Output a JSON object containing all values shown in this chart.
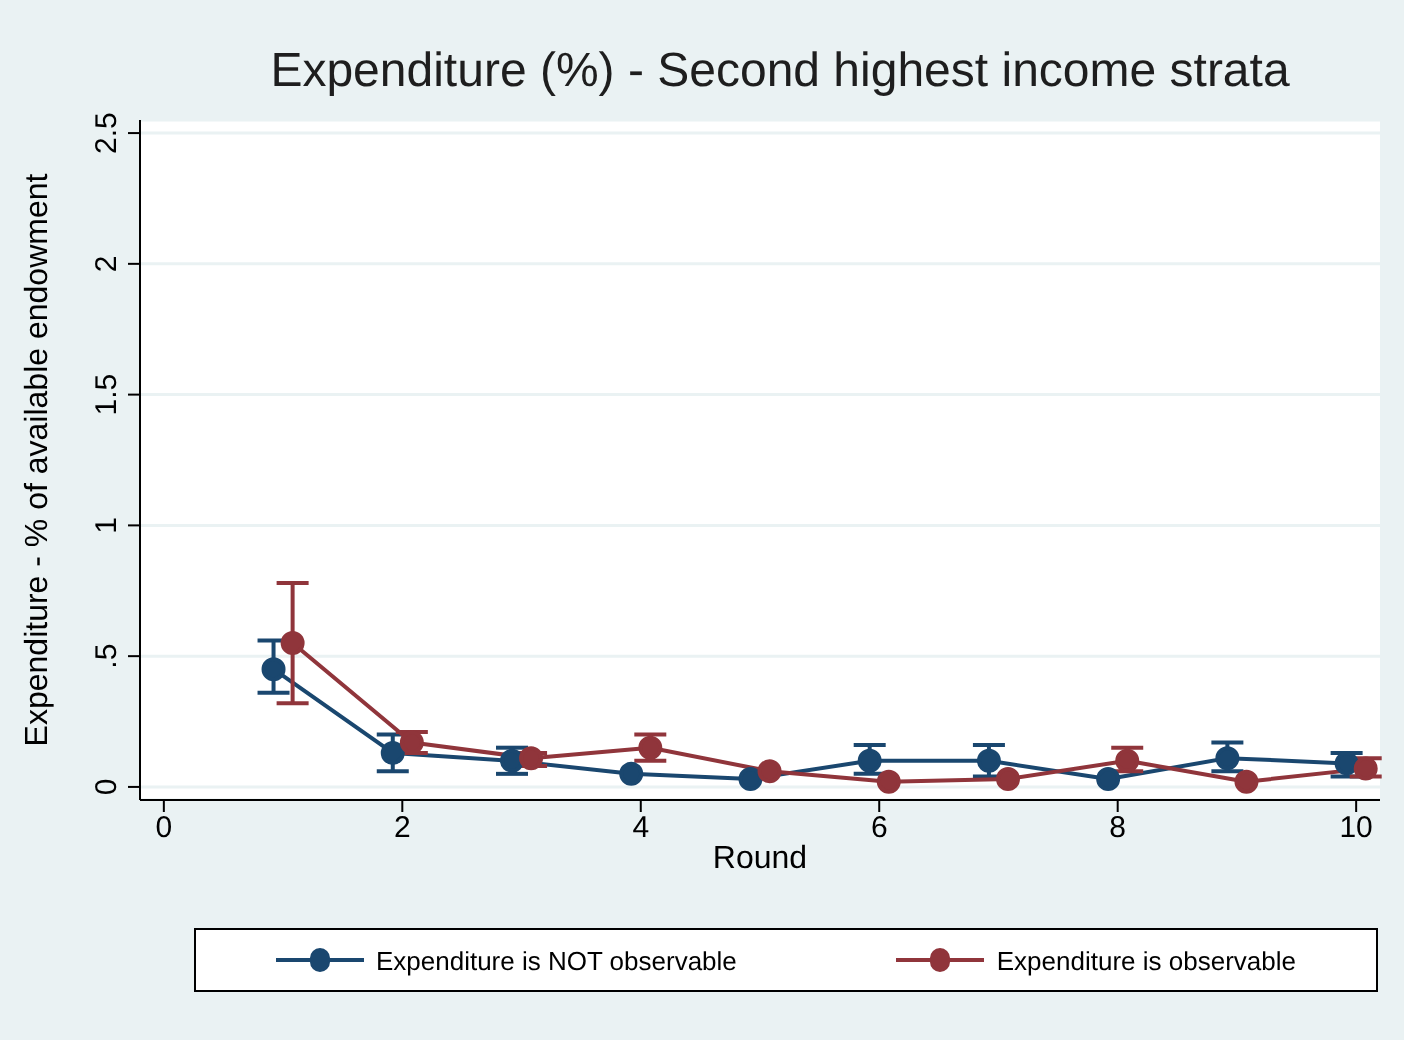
{
  "chart_data": {
    "type": "line",
    "title": "Expenditure (%) - Second highest income strata",
    "xlabel": "Round",
    "ylabel": "Expenditure - % of available endowment",
    "xlim": [
      -0.2,
      10.2
    ],
    "xticks": [
      0,
      2,
      4,
      6,
      8,
      10
    ],
    "ylim": [
      -0.05,
      2.55
    ],
    "yticks": [
      0,
      {
        "value": 0.5,
        "label": ".5"
      },
      1,
      1.5,
      2,
      2.5
    ],
    "grid": "y",
    "legend": "bottom",
    "marker": "circle",
    "series": [
      {
        "name": "Expenditure is NOT observable",
        "color": "#1a476f",
        "x": [
          0.92,
          1.92,
          2.92,
          3.92,
          4.92,
          5.92,
          6.92,
          7.92,
          8.92,
          9.92
        ],
        "values": [
          0.45,
          0.13,
          0.1,
          0.05,
          0.03,
          0.1,
          0.1,
          0.03,
          0.11,
          0.09
        ],
        "errors": [
          [
            0.36,
            0.56
          ],
          [
            0.06,
            0.2
          ],
          [
            0.05,
            0.15
          ],
          null,
          null,
          [
            0.05,
            0.16
          ],
          [
            0.04,
            0.16
          ],
          null,
          [
            0.06,
            0.17
          ],
          [
            0.04,
            0.13
          ]
        ]
      },
      {
        "name": "Expenditure is observable",
        "color": "#90353b",
        "x": [
          1.08,
          2.08,
          3.08,
          4.08,
          5.08,
          6.08,
          7.08,
          8.08,
          9.08,
          10.08
        ],
        "values": [
          0.55,
          0.17,
          0.11,
          0.15,
          0.06,
          0.02,
          0.03,
          0.1,
          0.02,
          0.07
        ],
        "errors": [
          [
            0.32,
            0.78
          ],
          [
            0.13,
            0.21
          ],
          [
            0.08,
            0.13
          ],
          [
            0.1,
            0.2
          ],
          null,
          null,
          null,
          [
            0.06,
            0.15
          ],
          null,
          [
            0.04,
            0.11
          ]
        ]
      }
    ]
  }
}
